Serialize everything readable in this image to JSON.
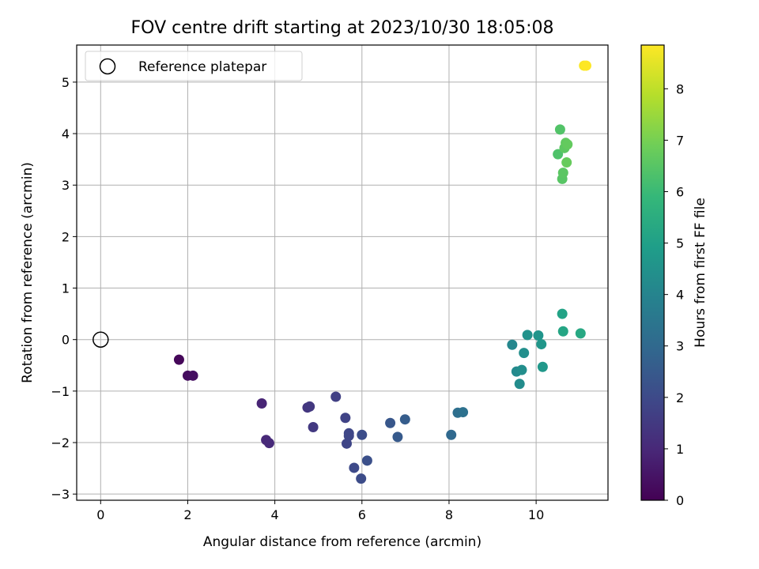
{
  "chart_data": {
    "type": "scatter",
    "title": "FOV centre drift starting at 2023/10/30 18:05:08",
    "xlabel": "Angular distance from reference (arcmin)",
    "ylabel": "Rotation from reference (arcmin)",
    "xlim": [
      -0.55,
      11.65
    ],
    "ylim": [
      -3.12,
      5.72
    ],
    "xticks": [
      0,
      2,
      4,
      6,
      8,
      10
    ],
    "yticks": [
      -3,
      -2,
      -1,
      0,
      1,
      2,
      3,
      4,
      5
    ],
    "grid": true,
    "legend": {
      "placement": "top-left",
      "entries": [
        "Reference platepar"
      ]
    },
    "reference": {
      "x": 0,
      "y": 0
    },
    "colorbar": {
      "label": "Hours from first FF file",
      "min": 0,
      "max": 8.85,
      "ticks": [
        0,
        1,
        2,
        3,
        4,
        5,
        6,
        7,
        8
      ],
      "colormap": [
        "#440154",
        "#482878",
        "#3e4989",
        "#31688e",
        "#26828e",
        "#1f9e89",
        "#35b779",
        "#6ece58",
        "#b5de2b",
        "#fde725"
      ]
    },
    "series": [
      {
        "points": [
          {
            "x": 1.8,
            "y": -0.39,
            "c": 0.15
          },
          {
            "x": 2.0,
            "y": -0.7,
            "c": 0.3
          },
          {
            "x": 2.12,
            "y": -0.7,
            "c": 0.35
          },
          {
            "x": 3.7,
            "y": -1.24,
            "c": 0.9
          },
          {
            "x": 3.8,
            "y": -1.95,
            "c": 1.0
          },
          {
            "x": 3.87,
            "y": -2.01,
            "c": 1.05
          },
          {
            "x": 4.75,
            "y": -1.32,
            "c": 1.4
          },
          {
            "x": 4.8,
            "y": -1.3,
            "c": 1.45
          },
          {
            "x": 4.88,
            "y": -1.7,
            "c": 1.5
          },
          {
            "x": 5.4,
            "y": -1.11,
            "c": 1.7
          },
          {
            "x": 5.62,
            "y": -1.52,
            "c": 1.8
          },
          {
            "x": 5.65,
            "y": -2.02,
            "c": 1.85
          },
          {
            "x": 5.7,
            "y": -1.82,
            "c": 1.9
          },
          {
            "x": 5.7,
            "y": -1.87,
            "c": 1.9
          },
          {
            "x": 5.82,
            "y": -2.49,
            "c": 2.0
          },
          {
            "x": 5.98,
            "y": -2.7,
            "c": 2.05
          },
          {
            "x": 6.0,
            "y": -1.85,
            "c": 2.1
          },
          {
            "x": 6.12,
            "y": -2.35,
            "c": 2.2
          },
          {
            "x": 6.65,
            "y": -1.62,
            "c": 2.4
          },
          {
            "x": 6.82,
            "y": -1.89,
            "c": 2.5
          },
          {
            "x": 6.99,
            "y": -1.55,
            "c": 2.6
          },
          {
            "x": 8.05,
            "y": -1.85,
            "c": 3.0
          },
          {
            "x": 8.2,
            "y": -1.42,
            "c": 3.2
          },
          {
            "x": 8.32,
            "y": -1.41,
            "c": 3.3
          },
          {
            "x": 9.45,
            "y": -0.1,
            "c": 4.1
          },
          {
            "x": 9.55,
            "y": -0.62,
            "c": 4.2
          },
          {
            "x": 9.62,
            "y": -0.86,
            "c": 4.3
          },
          {
            "x": 9.67,
            "y": -0.59,
            "c": 4.35
          },
          {
            "x": 9.72,
            "y": -0.26,
            "c": 4.4
          },
          {
            "x": 9.8,
            "y": 0.09,
            "c": 4.5
          },
          {
            "x": 10.05,
            "y": 0.08,
            "c": 4.6
          },
          {
            "x": 10.12,
            "y": -0.09,
            "c": 4.65
          },
          {
            "x": 10.15,
            "y": -0.53,
            "c": 4.7
          },
          {
            "x": 10.6,
            "y": 0.5,
            "c": 5.1
          },
          {
            "x": 10.62,
            "y": 0.16,
            "c": 5.2
          },
          {
            "x": 11.02,
            "y": 0.12,
            "c": 5.3
          },
          {
            "x": 10.5,
            "y": 3.6,
            "c": 6.35
          },
          {
            "x": 10.55,
            "y": 4.08,
            "c": 6.4
          },
          {
            "x": 10.6,
            "y": 3.12,
            "c": 6.5
          },
          {
            "x": 10.62,
            "y": 3.24,
            "c": 6.55
          },
          {
            "x": 10.65,
            "y": 3.72,
            "c": 6.6
          },
          {
            "x": 10.68,
            "y": 3.82,
            "c": 6.65
          },
          {
            "x": 10.72,
            "y": 3.79,
            "c": 6.7
          },
          {
            "x": 10.7,
            "y": 3.44,
            "c": 6.75
          },
          {
            "x": 11.1,
            "y": 5.32,
            "c": 8.8
          },
          {
            "x": 11.15,
            "y": 5.32,
            "c": 8.85
          }
        ]
      }
    ]
  }
}
